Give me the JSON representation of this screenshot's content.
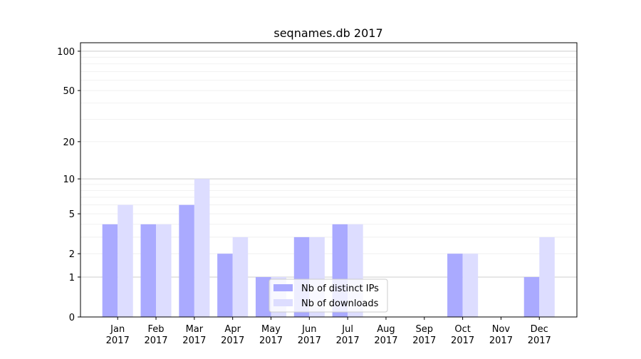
{
  "chart_data": {
    "type": "bar",
    "title": "seqnames.db 2017",
    "xlabel": "",
    "ylabel": "",
    "y_scale": "log(1+y)",
    "ylim": [
      0,
      116
    ],
    "y_ticks": [
      0,
      1,
      2,
      5,
      10,
      20,
      50,
      100
    ],
    "grid": "horizontal",
    "legend_position": "bottom-center",
    "categories": [
      "Jan\n2017",
      "Feb\n2017",
      "Mar\n2017",
      "Apr\n2017",
      "May\n2017",
      "Jun\n2017",
      "Jul\n2017",
      "Aug\n2017",
      "Sep\n2017",
      "Oct\n2017",
      "Nov\n2017",
      "Dec\n2017"
    ],
    "series": [
      {
        "name": "Nb of distinct IPs",
        "color": "#aaaaff",
        "values": [
          4,
          4,
          6,
          2,
          1,
          3,
          4,
          0,
          0,
          2,
          0,
          1
        ]
      },
      {
        "name": "Nb of downloads",
        "color": "#ddddff",
        "values": [
          6,
          4,
          10,
          3,
          1,
          3,
          4,
          0,
          0,
          2,
          0,
          3
        ]
      }
    ]
  }
}
